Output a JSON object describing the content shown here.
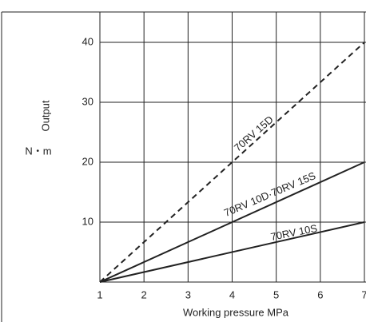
{
  "chart_data": {
    "type": "line",
    "y_label": "Output",
    "y_unit": "N・m",
    "x_label": "Working pressure   MPa",
    "x": [
      1,
      7
    ],
    "series": [
      {
        "name": "70RV 15D",
        "color": "#222222",
        "dash": true,
        "values": [
          0,
          40
        ]
      },
      {
        "name": "70RV 10D·70RV 15S",
        "color": "#222222",
        "dash": false,
        "values": [
          0,
          20
        ]
      },
      {
        "name": "70RV 10S",
        "color": "#222222",
        "dash": false,
        "values": [
          0,
          10
        ]
      }
    ],
    "xlim": [
      1,
      7
    ],
    "xticks": [
      1,
      2,
      3,
      4,
      5,
      6,
      7
    ],
    "ylim": [
      0,
      45
    ],
    "yticks": [
      10,
      20,
      30,
      40
    ],
    "grid": true
  }
}
